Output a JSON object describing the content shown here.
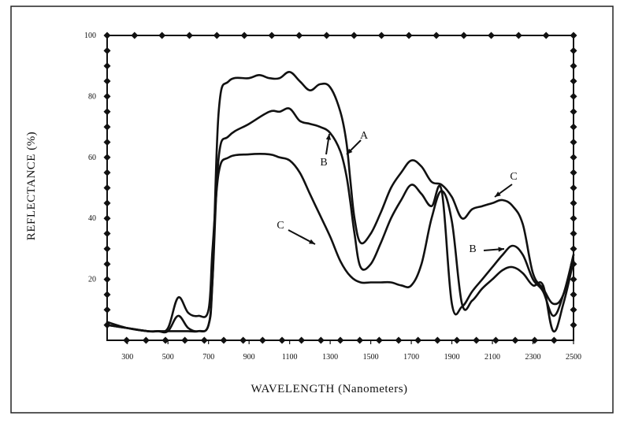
{
  "chart_data": {
    "type": "line",
    "xlabel": "WAVELENGTH (Nanometers)",
    "ylabel": "REFLECTANCE (%)",
    "xlim": [
      200,
      2500
    ],
    "ylim": [
      0,
      100
    ],
    "x_ticks": [
      300,
      500,
      700,
      900,
      1100,
      1300,
      1500,
      1700,
      1900,
      2100,
      2300,
      2500
    ],
    "x_tick_labels": [
      "300",
      "500",
      "700",
      "900",
      "1100",
      "1300",
      "1500",
      "1700",
      "1900",
      "2100",
      "2300",
      "2500"
    ],
    "y_ticks": [
      20,
      40,
      60,
      80,
      100
    ],
    "y_tick_labels": [
      "20",
      "40",
      "60",
      "80",
      "100"
    ],
    "grid": false,
    "series": [
      {
        "name": "A",
        "x": [
          200,
          300,
          400,
          450,
          500,
          550,
          600,
          650,
          700,
          720,
          750,
          800,
          900,
          950,
          1000,
          1050,
          1100,
          1150,
          1200,
          1250,
          1300,
          1350,
          1380,
          1400,
          1420,
          1450,
          1500,
          1550,
          1600,
          1650,
          1700,
          1750,
          1800,
          1850,
          1900,
          1950,
          2000,
          2050,
          2100,
          2150,
          2200,
          2250,
          2300,
          2350,
          2400,
          2450,
          2500
        ],
        "y": [
          6,
          4,
          3,
          3,
          3,
          3,
          3,
          3,
          5,
          20,
          75,
          85,
          86,
          87,
          86,
          86,
          88,
          85,
          82,
          84,
          83,
          75,
          65,
          52,
          40,
          32,
          35,
          42,
          50,
          55,
          59,
          57,
          52,
          51,
          47,
          40,
          43,
          44,
          45,
          46,
          44,
          38,
          22,
          17,
          12,
          15,
          28
        ]
      },
      {
        "name": "B",
        "x": [
          200,
          300,
          400,
          450,
          500,
          550,
          600,
          650,
          700,
          720,
          750,
          800,
          900,
          1000,
          1050,
          1100,
          1150,
          1200,
          1250,
          1300,
          1350,
          1380,
          1400,
          1420,
          1450,
          1500,
          1550,
          1600,
          1650,
          1700,
          1750,
          1800,
          1850,
          1900,
          1950,
          2000,
          2050,
          2100,
          2150,
          2200,
          2250,
          2300,
          2350,
          2400,
          2450,
          2500
        ],
        "y": [
          5,
          4,
          3,
          3,
          3,
          8,
          4,
          3,
          5,
          20,
          60,
          67,
          71,
          75,
          75,
          76,
          72,
          71,
          70,
          68,
          62,
          54,
          45,
          35,
          24,
          25,
          32,
          40,
          46,
          51,
          48,
          44,
          49,
          12,
          11,
          16,
          20,
          24,
          28,
          31,
          28,
          20,
          16,
          8,
          15,
          28
        ]
      },
      {
        "name": "C",
        "x": [
          200,
          300,
          400,
          450,
          500,
          550,
          600,
          650,
          700,
          720,
          750,
          800,
          900,
          1000,
          1050,
          1100,
          1150,
          1200,
          1250,
          1300,
          1350,
          1400,
          1450,
          1500,
          1550,
          1600,
          1650,
          1700,
          1750,
          1800,
          1850,
          1900,
          1950,
          2000,
          2050,
          2100,
          2150,
          2200,
          2250,
          2300,
          2350,
          2400,
          2450,
          2500
        ],
        "y": [
          5,
          4,
          3,
          3,
          4,
          14,
          9,
          8,
          10,
          30,
          55,
          60,
          61,
          61,
          60,
          59,
          55,
          48,
          41,
          34,
          26,
          21,
          19,
          19,
          19,
          19,
          18,
          18,
          25,
          40,
          49,
          39,
          12,
          13,
          17,
          20,
          23,
          24,
          22,
          18,
          18,
          3,
          12,
          26
        ]
      }
    ],
    "annotations": [
      {
        "label": "A",
        "target_series": "A"
      },
      {
        "label": "B",
        "target_series": "B"
      },
      {
        "label": "C",
        "target_series": "C"
      },
      {
        "label": "B",
        "target_series": "B"
      },
      {
        "label": "C",
        "target_series": "C"
      }
    ]
  }
}
